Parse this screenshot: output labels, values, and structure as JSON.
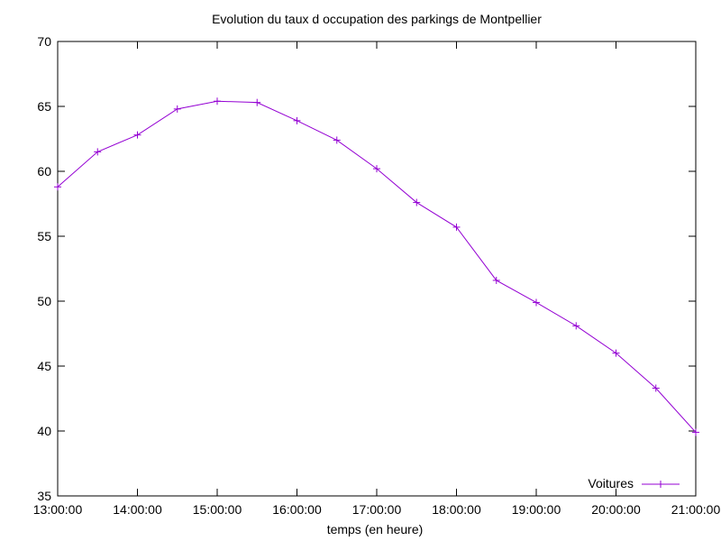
{
  "chart_data": {
    "type": "line",
    "title": "Evolution du taux d occupation des parkings de Montpellier",
    "xlabel": "temps (en heure)",
    "ylabel": "",
    "x_ticks": [
      "13:00:00",
      "14:00:00",
      "15:00:00",
      "16:00:00",
      "17:00:00",
      "18:00:00",
      "19:00:00",
      "20:00:00",
      "21:00:00"
    ],
    "y_ticks": [
      35,
      40,
      45,
      50,
      55,
      60,
      65,
      70
    ],
    "xlim": [
      13,
      21
    ],
    "ylim": [
      35,
      70
    ],
    "legend_position": "bottom-right",
    "grid": false,
    "series": [
      {
        "name": "Voitures",
        "color": "#9400d3",
        "marker": "plus",
        "x": [
          13.0,
          13.5,
          14.0,
          14.5,
          15.0,
          15.5,
          16.0,
          16.5,
          17.0,
          17.5,
          18.0,
          18.5,
          19.0,
          19.5,
          20.0,
          20.5,
          21.0
        ],
        "y": [
          58.8,
          61.5,
          62.8,
          64.8,
          65.4,
          65.3,
          63.9,
          62.4,
          60.2,
          57.6,
          55.7,
          51.6,
          49.9,
          48.1,
          46.0,
          43.3,
          39.9
        ]
      }
    ]
  }
}
